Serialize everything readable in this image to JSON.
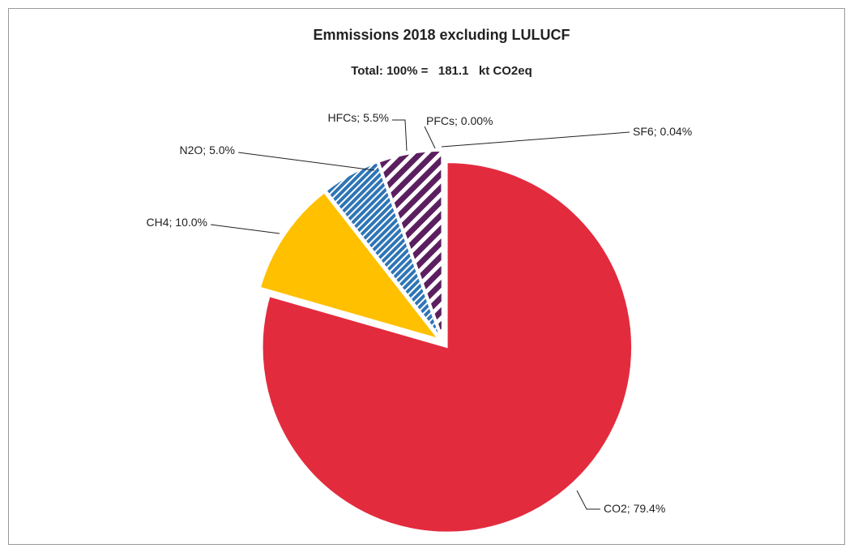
{
  "chart_data": {
    "type": "pie",
    "title": "Emmissions 2018 excluding LULUCF",
    "subtitle": "Total: 100% =   181.1   kt CO2eq",
    "categories": [
      "CO2",
      "CH4",
      "N2O",
      "HFCs",
      "PFCs",
      "SF6"
    ],
    "values": [
      79.4,
      10.0,
      5.0,
      5.5,
      0.0,
      0.04
    ],
    "value_labels": [
      "79.4%",
      "10.0%",
      "5.0%",
      "5.5%",
      "0.00%",
      "0.04%"
    ],
    "label_separator": "; ",
    "colors": [
      "#e32b3e",
      "#ffc000",
      "#2e75b6",
      "#5b1f5f",
      "#5b1f5f",
      "#5b1f5f"
    ],
    "hatched": [
      false,
      false,
      true,
      true,
      true,
      true
    ]
  }
}
